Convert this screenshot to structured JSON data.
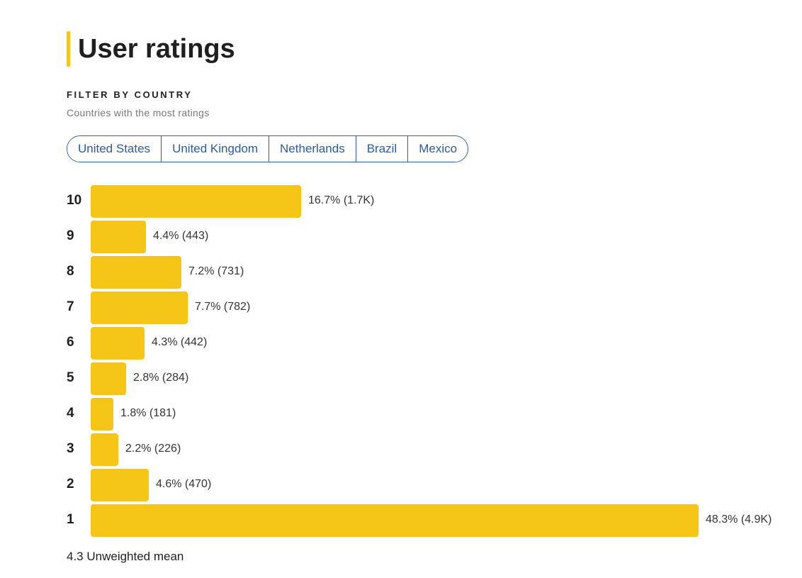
{
  "header": {
    "title": "User ratings",
    "accent_color": "#f5c518"
  },
  "filter": {
    "label": "FILTER BY COUNTRY",
    "subtitle": "Countries with the most ratings",
    "countries": [
      "United States",
      "United Kingdom",
      "Netherlands",
      "Brazil",
      "Mexico"
    ]
  },
  "chart_data": {
    "type": "bar",
    "orientation": "horizontal",
    "categories": [
      "10",
      "9",
      "8",
      "7",
      "6",
      "5",
      "4",
      "3",
      "2",
      "1"
    ],
    "values": [
      16.7,
      4.4,
      7.2,
      7.7,
      4.3,
      2.8,
      1.8,
      2.2,
      4.6,
      48.3
    ],
    "counts": [
      "1.7K",
      "443",
      "731",
      "782",
      "442",
      "284",
      "181",
      "226",
      "470",
      "4.9K"
    ],
    "labels": [
      "16.7% (1.7K)",
      "4.4% (443)",
      "7.2% (731)",
      "7.7% (782)",
      "4.3% (442)",
      "2.8% (284)",
      "1.8% (181)",
      "2.2% (226)",
      "4.6% (470)",
      "48.3% (4.9K)"
    ],
    "bar_color": "#f5c518",
    "title": "",
    "xlabel": "",
    "ylabel": ""
  },
  "summary": {
    "mean_text": "4.3 Unweighted mean"
  }
}
